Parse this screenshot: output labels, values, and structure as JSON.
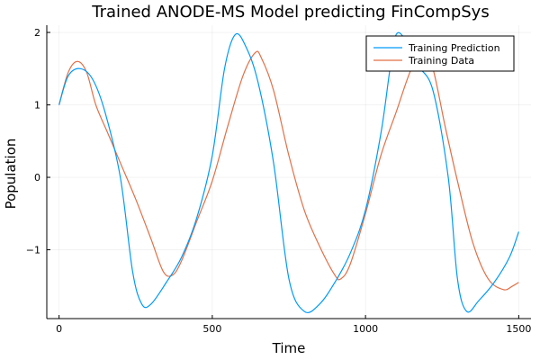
{
  "chart_data": {
    "type": "line",
    "title": "Trained ANODE-MS Model predicting FinCompSys",
    "xlabel": "Time",
    "ylabel": "Population",
    "xlim": [
      -40,
      1540
    ],
    "ylim": [
      -1.95,
      2.1
    ],
    "x_ticks": [
      0,
      500,
      1000,
      1500
    ],
    "x_tick_labels": [
      "0",
      "500",
      "1000",
      "1500"
    ],
    "y_ticks": [
      -1,
      0,
      1,
      2
    ],
    "y_tick_labels": [
      "−1",
      "0",
      "1",
      "2"
    ],
    "grid": true,
    "legend_position": "top-right",
    "series": [
      {
        "name": "Training Prediction",
        "color": "#009af9",
        "x": [
          0,
          30,
          70,
          110,
          150,
          200,
          240,
          270,
          300,
          350,
          400,
          450,
          500,
          540,
          575,
          610,
          650,
          700,
          750,
          800,
          850,
          900,
          950,
          1000,
          1050,
          1080,
          1100,
          1130,
          1170,
          1220,
          1270,
          1300,
          1330,
          1370,
          1420,
          1470,
          1500
        ],
        "y": [
          1.0,
          1.4,
          1.5,
          1.35,
          0.9,
          0.0,
          -1.3,
          -1.75,
          -1.75,
          -1.45,
          -1.1,
          -0.55,
          0.3,
          1.5,
          1.97,
          1.8,
          1.3,
          0.2,
          -1.4,
          -1.85,
          -1.75,
          -1.45,
          -1.05,
          -0.45,
          0.6,
          1.5,
          1.97,
          1.9,
          1.55,
          1.2,
          0.0,
          -1.4,
          -1.85,
          -1.7,
          -1.45,
          -1.1,
          -0.75
        ]
      },
      {
        "name": "Training Data",
        "color": "#e26f46",
        "x": [
          0,
          30,
          60,
          90,
          120,
          160,
          200,
          250,
          300,
          340,
          370,
          400,
          450,
          500,
          550,
          600,
          640,
          660,
          700,
          750,
          800,
          850,
          900,
          920,
          950,
          1000,
          1050,
          1100,
          1150,
          1190,
          1220,
          1260,
          1300,
          1350,
          1400,
          1450,
          1480,
          1500
        ],
        "y": [
          1.0,
          1.45,
          1.6,
          1.45,
          1.0,
          0.6,
          0.2,
          -0.3,
          -0.85,
          -1.3,
          -1.35,
          -1.15,
          -0.6,
          -0.05,
          0.7,
          1.4,
          1.72,
          1.65,
          1.2,
          0.3,
          -0.45,
          -0.95,
          -1.35,
          -1.4,
          -1.2,
          -0.5,
          0.3,
          0.9,
          1.5,
          1.7,
          1.5,
          0.7,
          -0.05,
          -0.9,
          -1.4,
          -1.55,
          -1.5,
          -1.45
        ]
      }
    ]
  }
}
